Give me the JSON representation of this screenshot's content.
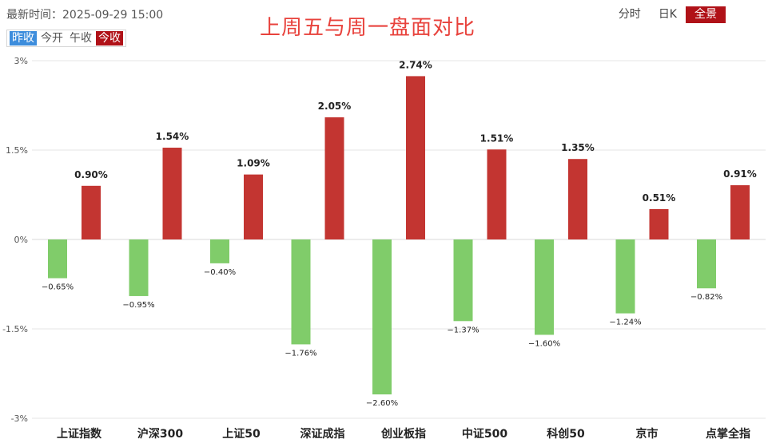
{
  "header": {
    "update_time": "最新时间：2025-09-29 15:00",
    "title": "上周五与周一盘面对比"
  },
  "mode_tabs": [
    {
      "label": "昨收",
      "style": "blue"
    },
    {
      "label": "今开",
      "style": "none"
    },
    {
      "label": "午收",
      "style": "none"
    },
    {
      "label": "今收",
      "style": "red"
    }
  ],
  "view_tabs": [
    {
      "label": "分时",
      "active": false
    },
    {
      "label": "日K",
      "active": false
    },
    {
      "label": "全景",
      "active": true
    }
  ],
  "colors": {
    "positive": "#c33531",
    "negative": "#80cc6a",
    "title": "#e8423c",
    "tab_active": "#b01218",
    "tab_blue": "#3d8ddc"
  },
  "chart_data": {
    "type": "bar",
    "title": "上周五与周一盘面对比",
    "xlabel": "",
    "ylabel": "",
    "ylim": [
      -3,
      3
    ],
    "yticks": [
      3,
      1.5,
      0,
      -1.5,
      -3
    ],
    "ytick_labels": [
      "3%",
      "1.5%",
      "0%",
      "-1.5%",
      "-3%"
    ],
    "grid": true,
    "categories": [
      "上证指数",
      "沪深300",
      "上证50",
      "深证成指",
      "创业板指",
      "中证500",
      "科创50",
      "京市",
      "点掌全指"
    ],
    "series": [
      {
        "name": "上周五",
        "values": [
          -0.65,
          -0.95,
          -0.4,
          -1.76,
          -2.6,
          -1.37,
          -1.6,
          -1.24,
          -0.82
        ],
        "labels": [
          "−0.65%",
          "−0.95%",
          "−0.40%",
          "−1.76%",
          "−2.60%",
          "−1.37%",
          "−1.60%",
          "−1.24%",
          "−0.82%"
        ]
      },
      {
        "name": "周一",
        "values": [
          0.9,
          1.54,
          1.09,
          2.05,
          2.74,
          1.51,
          1.35,
          0.51,
          0.91
        ],
        "labels": [
          "0.90%",
          "1.54%",
          "1.09%",
          "2.05%",
          "2.74%",
          "1.51%",
          "1.35%",
          "0.51%",
          "0.91%"
        ]
      }
    ]
  }
}
